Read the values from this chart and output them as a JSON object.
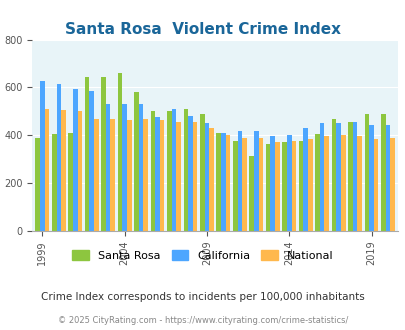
{
  "title": "Santa Rosa  Violent Crime Index",
  "years": [
    1999,
    2000,
    2001,
    2002,
    2003,
    2004,
    2005,
    2006,
    2007,
    2008,
    2009,
    2010,
    2011,
    2012,
    2013,
    2014,
    2015,
    2016,
    2017,
    2018,
    2019,
    2020
  ],
  "santa_rosa": [
    390,
    405,
    410,
    645,
    645,
    660,
    580,
    500,
    500,
    510,
    490,
    408,
    375,
    315,
    365,
    370,
    375,
    405,
    470,
    455,
    490,
    490
  ],
  "california": [
    625,
    615,
    595,
    585,
    530,
    530,
    530,
    475,
    510,
    480,
    450,
    410,
    420,
    420,
    398,
    400,
    430,
    450,
    450,
    455,
    445,
    445
  ],
  "national": [
    510,
    505,
    500,
    470,
    470,
    465,
    470,
    465,
    455,
    455,
    430,
    400,
    390,
    387,
    370,
    375,
    383,
    395,
    400,
    395,
    383,
    387
  ],
  "ylim": [
    0,
    800
  ],
  "yticks": [
    0,
    200,
    400,
    600,
    800
  ],
  "xtick_years": [
    1999,
    2004,
    2009,
    2014,
    2019
  ],
  "colors": {
    "santa_rosa": "#8dc63f",
    "california": "#4da6ff",
    "national": "#ffb84d"
  },
  "bg_color": "#e8f4f8",
  "title_color": "#1a6699",
  "subtitle": "Crime Index corresponds to incidents per 100,000 inhabitants",
  "footer": "© 2025 CityRating.com - https://www.cityrating.com/crime-statistics/",
  "legend_labels": [
    "Santa Rosa",
    "California",
    "National"
  ]
}
